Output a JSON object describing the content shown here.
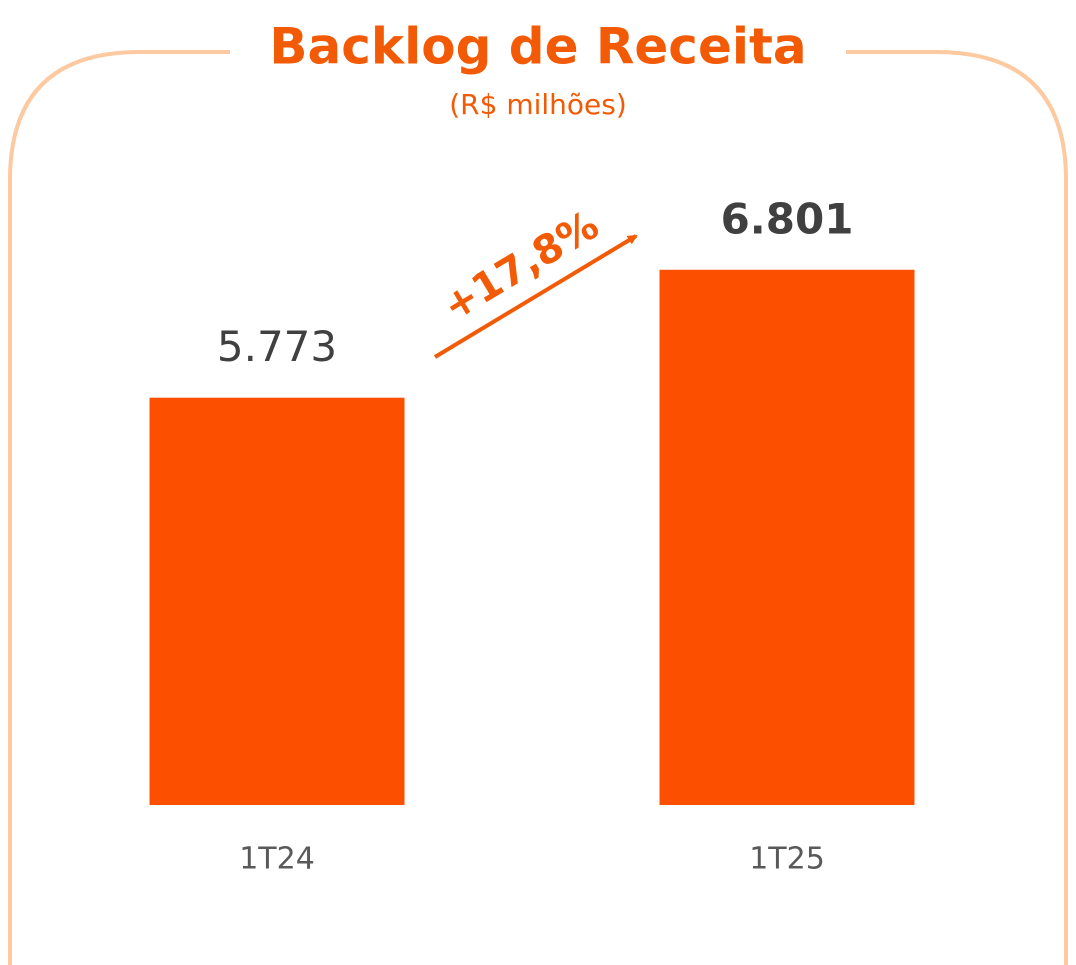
{
  "chart_data": {
    "type": "bar",
    "title": "Backlog de Receita",
    "subtitle": "(R$ milhões)",
    "annotation": "+17,8%",
    "categories": [
      "1T24",
      "1T25"
    ],
    "values": [
      5773,
      6801
    ],
    "value_labels": [
      "5.773",
      "6.801"
    ],
    "color": "#fc5000",
    "ylim": [
      2500,
      7000
    ]
  }
}
